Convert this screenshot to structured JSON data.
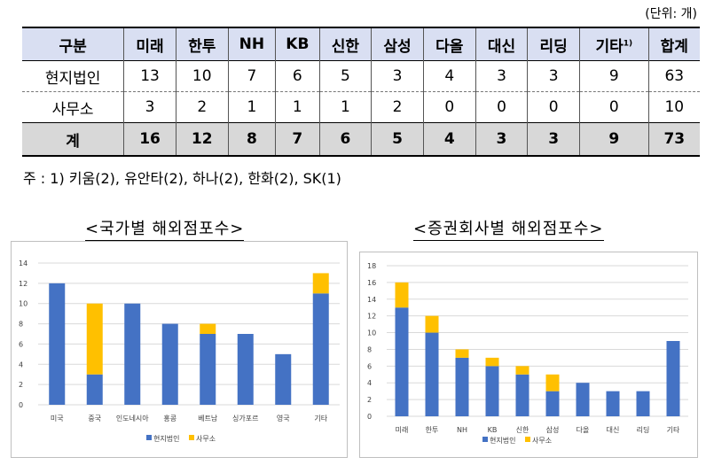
{
  "unit_note": "(단위: 개)",
  "table": {
    "headers": [
      "구분",
      "미래",
      "한투",
      "NH",
      "KB",
      "신한",
      "삼성",
      "다올",
      "대신",
      "리딩",
      "기타",
      "합계"
    ],
    "header_footnote": "1)",
    "rows": [
      {
        "label": "현지법인",
        "values": [
          "13",
          "10",
          "7",
          "6",
          "5",
          "3",
          "4",
          "3",
          "3",
          "9",
          "63"
        ]
      },
      {
        "label": "사무소",
        "values": [
          "3",
          "2",
          "1",
          "1",
          "1",
          "2",
          "0",
          "0",
          "0",
          "0",
          "10"
        ]
      }
    ],
    "total": {
      "label": "계",
      "values": [
        "16",
        "12",
        "8",
        "7",
        "6",
        "5",
        "4",
        "3",
        "3",
        "9",
        "73"
      ]
    }
  },
  "footnote": "주 : 1) 키움(2), 유안타(2), 하나(2), 한화(2), SK(1)",
  "colors": {
    "local": "#4472c4",
    "office": "#ffc000",
    "grid": "#d9d9d9"
  },
  "chart_data": [
    {
      "type": "bar",
      "stacked": true,
      "title": "<국가별 해외점포수>",
      "categories": [
        "미국",
        "중국",
        "인도네시아",
        "홍콩",
        "베트남",
        "싱가포르",
        "영국",
        "기타"
      ],
      "series": [
        {
          "name": "현지법인",
          "values": [
            12,
            3,
            10,
            8,
            7,
            7,
            5,
            11
          ]
        },
        {
          "name": "사무소",
          "values": [
            0,
            7,
            0,
            0,
            1,
            0,
            0,
            2
          ]
        }
      ],
      "yticks": [
        "0",
        "2",
        "4",
        "6",
        "8",
        "10",
        "12",
        "14"
      ],
      "ylim": [
        0,
        14
      ],
      "grid": true,
      "legend": "bottom"
    },
    {
      "type": "bar",
      "stacked": true,
      "title": "<증권회사별 해외점포수>",
      "categories": [
        "미래",
        "한투",
        "NH",
        "KB",
        "신한",
        "삼성",
        "다올",
        "대신",
        "리딩",
        "기타"
      ],
      "series": [
        {
          "name": "현지법인",
          "values": [
            13,
            10,
            7,
            6,
            5,
            3,
            4,
            3,
            3,
            9
          ]
        },
        {
          "name": "사무소",
          "values": [
            3,
            2,
            1,
            1,
            1,
            2,
            0,
            0,
            0,
            0
          ]
        }
      ],
      "yticks": [
        "0",
        "2",
        "4",
        "6",
        "8",
        "10",
        "12",
        "14",
        "16",
        "18"
      ],
      "ylim": [
        0,
        18
      ],
      "grid": true,
      "legend": "bottom"
    }
  ]
}
